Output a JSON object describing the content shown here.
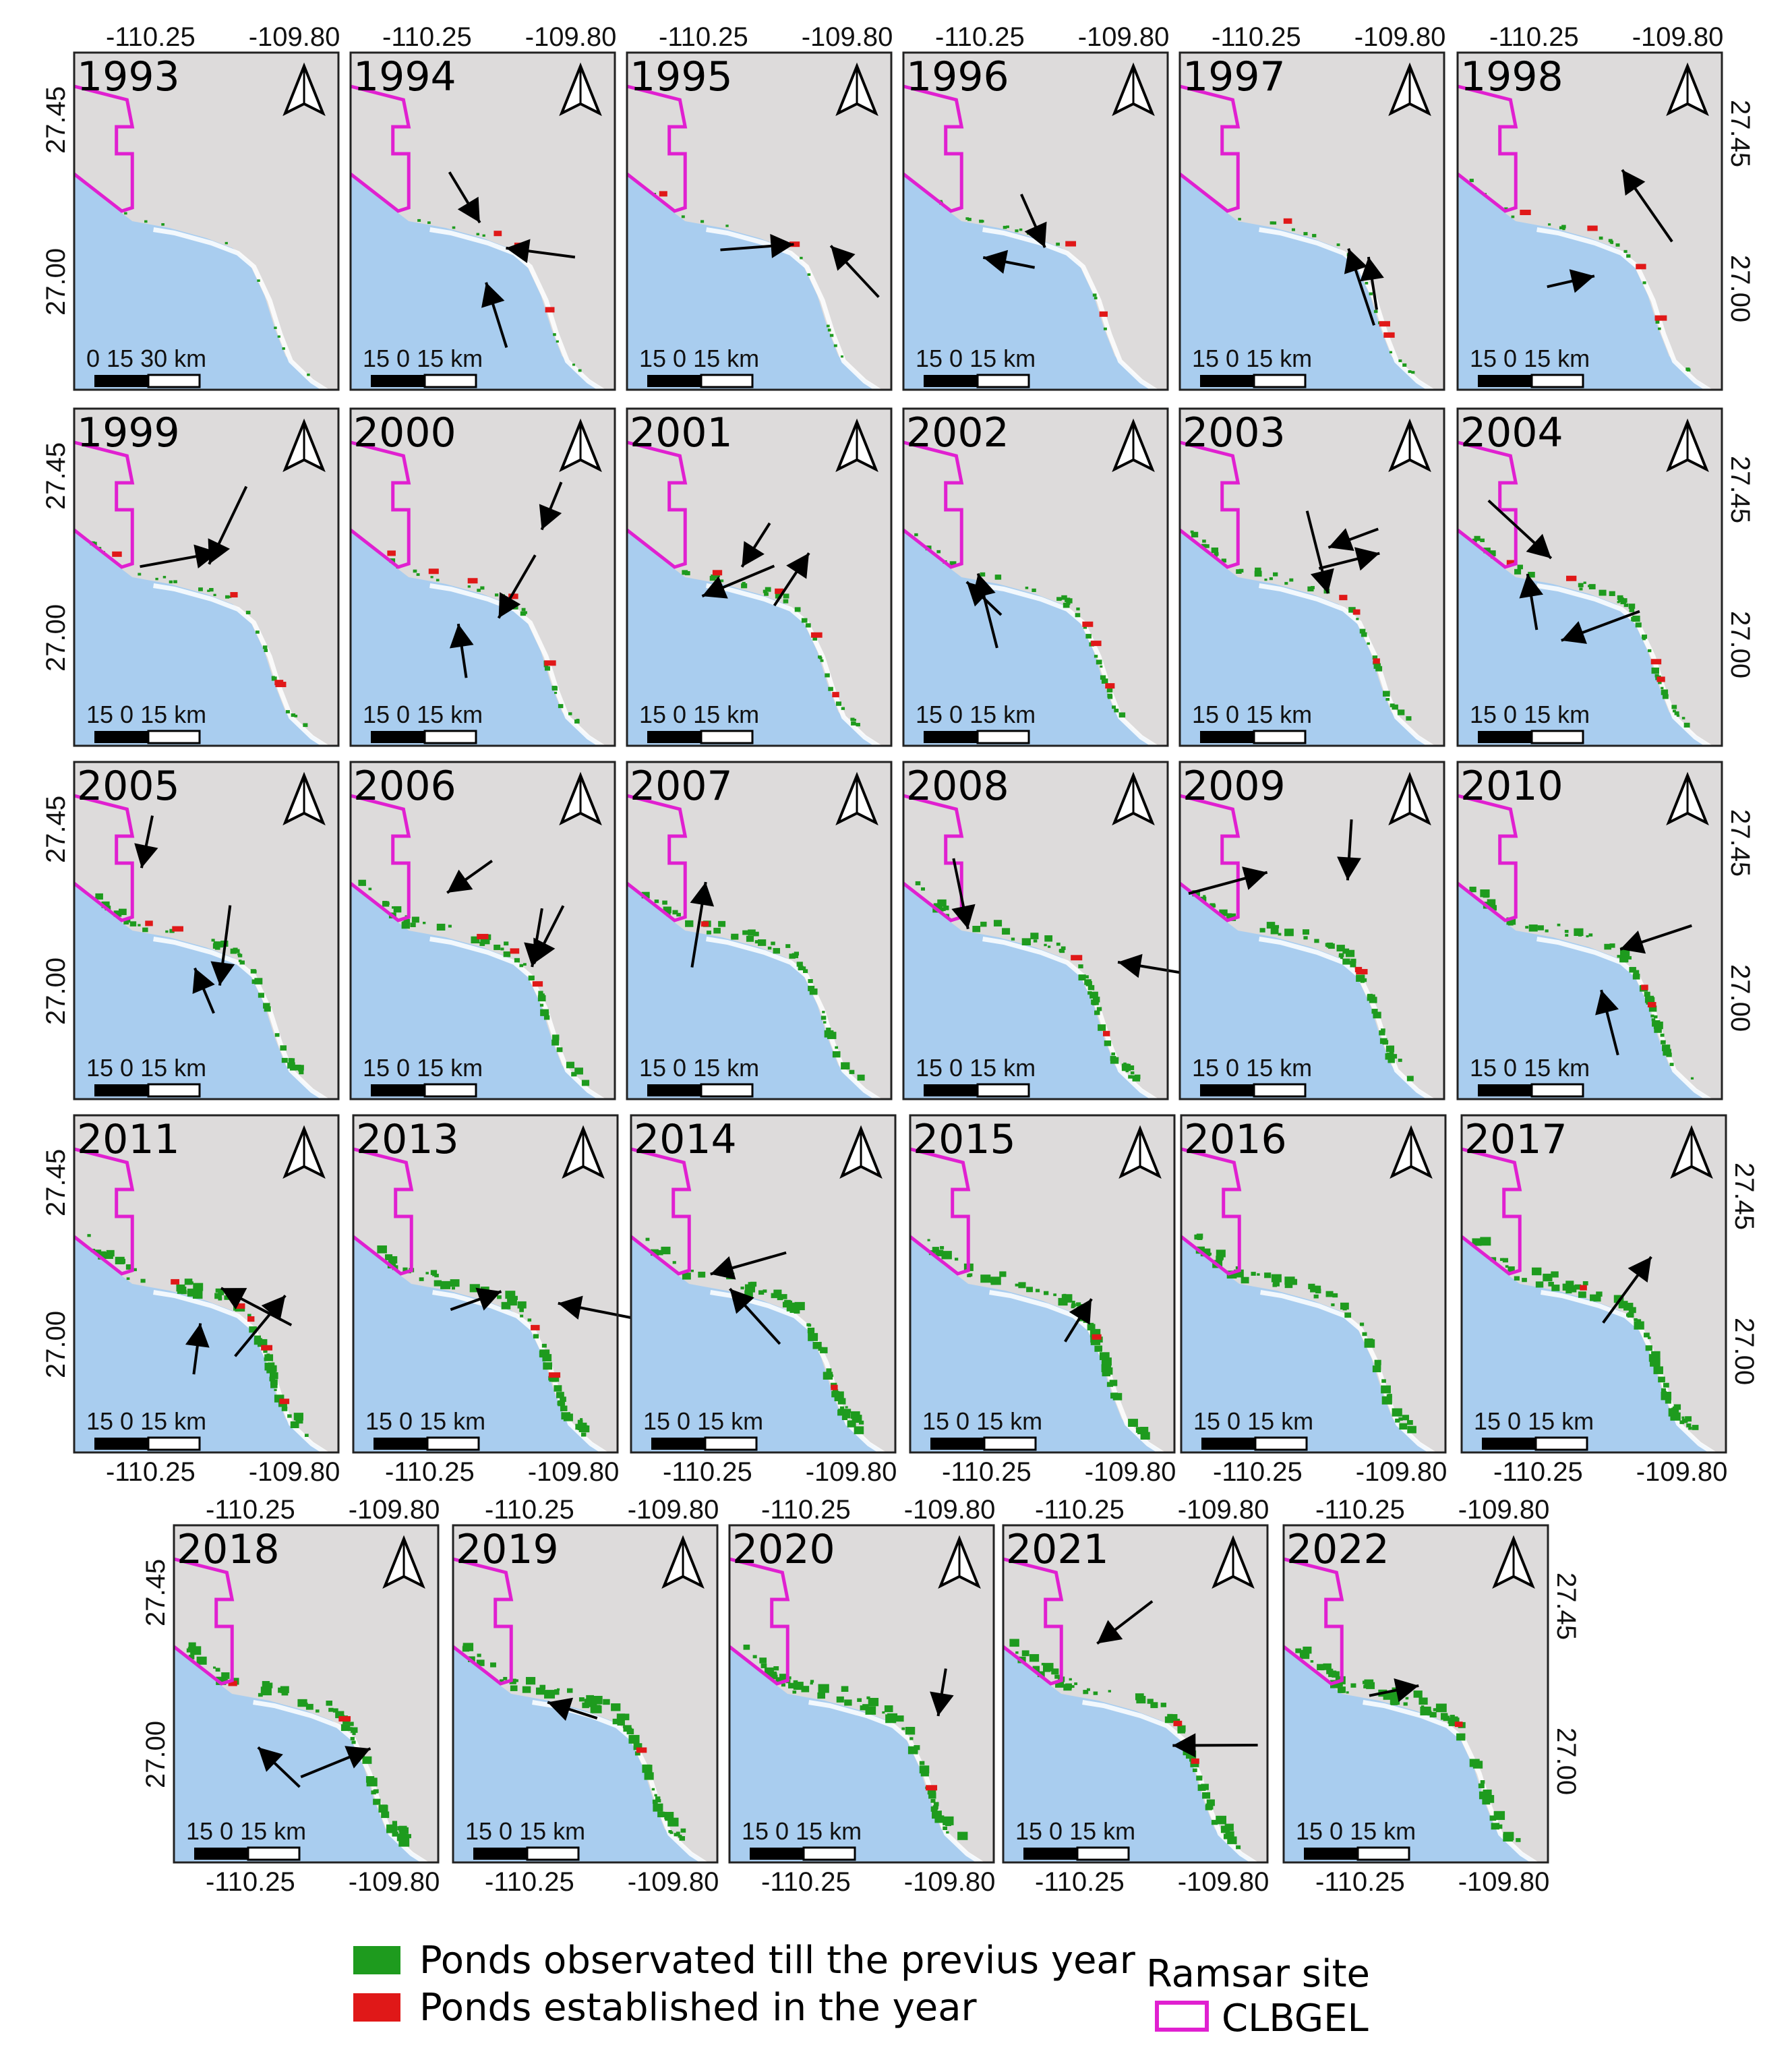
{
  "figure": {
    "legend": {
      "items": [
        {
          "label": "Ponds observated till the previus year",
          "color": "#1e9b1e"
        },
        {
          "label": "Ponds established in the year",
          "color": "#e01818"
        }
      ],
      "boundary_title": "Ramsar site",
      "boundary_label": "CLBGEL",
      "boundary_color": "#e020d0"
    },
    "colors": {
      "land": "#dddbdb",
      "sea": "#a9cdef",
      "coast": "#ffffff",
      "arrow": "#000000"
    },
    "axis_labels": {
      "lon_left": "-110.25",
      "lon_right": "-109.80",
      "lat_top": "27.45",
      "lat_bottom": "27.00"
    },
    "panels": [
      {
        "year": "1993",
        "scale": "0   15   30 km",
        "density": 0.05,
        "new": 0,
        "arrows": 0
      },
      {
        "year": "1994",
        "scale": "15    0    15 km",
        "density": 0.08,
        "new": 3,
        "arrows": 3
      },
      {
        "year": "1995",
        "scale": "15    0    15 km",
        "density": 0.1,
        "new": 2,
        "arrows": 2
      },
      {
        "year": "1996",
        "scale": "15    0    15 km",
        "density": 0.14,
        "new": 2,
        "arrows": 2
      },
      {
        "year": "1997",
        "scale": "15    0    15 km",
        "density": 0.17,
        "new": 3,
        "arrows": 2
      },
      {
        "year": "1998",
        "scale": "15    0    15 km",
        "density": 0.2,
        "new": 4,
        "arrows": 2
      },
      {
        "year": "1999",
        "scale": "15    0    15 km",
        "density": 0.28,
        "new": 4,
        "arrows": 2
      },
      {
        "year": "2000",
        "scale": "15    0    15 km",
        "density": 0.32,
        "new": 5,
        "arrows": 3
      },
      {
        "year": "2001",
        "scale": "15    0    15 km",
        "density": 0.38,
        "new": 4,
        "arrows": 3
      },
      {
        "year": "2002",
        "scale": "15    0    15 km",
        "density": 0.44,
        "new": 3,
        "arrows": 2
      },
      {
        "year": "2003",
        "scale": "15    0    15 km",
        "density": 0.5,
        "new": 3,
        "arrows": 3
      },
      {
        "year": "2004",
        "scale": "15    0    15 km",
        "density": 0.55,
        "new": 4,
        "arrows": 3
      },
      {
        "year": "2005",
        "scale": "15    0    15 km",
        "density": 0.6,
        "new": 2,
        "arrows": 3
      },
      {
        "year": "2006",
        "scale": "15    0    15 km",
        "density": 0.64,
        "new": 3,
        "arrows": 3
      },
      {
        "year": "2007",
        "scale": "15    0    15 km",
        "density": 0.68,
        "new": 1,
        "arrows": 1
      },
      {
        "year": "2008",
        "scale": "15    0    15 km",
        "density": 0.7,
        "new": 2,
        "arrows": 2
      },
      {
        "year": "2009",
        "scale": "15    0    15 km",
        "density": 0.72,
        "new": 2,
        "arrows": 2
      },
      {
        "year": "2010",
        "scale": "15    0    15 km",
        "density": 0.74,
        "new": 2,
        "arrows": 2
      },
      {
        "year": "2011",
        "scale": "15    0    15 km",
        "density": 0.78,
        "new": 5,
        "arrows": 3
      },
      {
        "year": "2013",
        "scale": "15    0    15 km",
        "density": 0.8,
        "new": 2,
        "arrows": 2
      },
      {
        "year": "2014",
        "scale": "15    0    15 km",
        "density": 0.82,
        "new": 1,
        "arrows": 2
      },
      {
        "year": "2015",
        "scale": "15    0    15 km",
        "density": 0.84,
        "new": 1,
        "arrows": 1
      },
      {
        "year": "2016",
        "scale": "15    0    15 km",
        "density": 0.85,
        "new": 0,
        "arrows": 0
      },
      {
        "year": "2017",
        "scale": "15    0    15 km",
        "density": 0.86,
        "new": 1,
        "arrows": 1
      },
      {
        "year": "2018",
        "scale": "15    0    15 km",
        "density": 0.87,
        "new": 2,
        "arrows": 2
      },
      {
        "year": "2019",
        "scale": "15    0    15 km",
        "density": 0.88,
        "new": 1,
        "arrows": 1
      },
      {
        "year": "2020",
        "scale": "15    0    15 km",
        "density": 0.89,
        "new": 1,
        "arrows": 1
      },
      {
        "year": "2021",
        "scale": "15    0    15 km",
        "density": 0.9,
        "new": 2,
        "arrows": 2
      },
      {
        "year": "2022",
        "scale": "15    0    15 km",
        "density": 0.9,
        "new": 1,
        "arrows": 1
      }
    ]
  }
}
